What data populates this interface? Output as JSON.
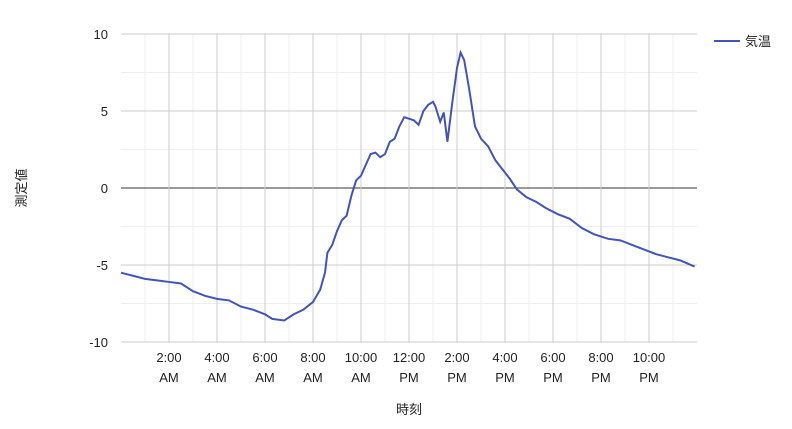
{
  "chart_data": {
    "type": "line",
    "x_label": "時刻",
    "y_label": "測定値",
    "x": [
      0,
      0.5,
      1,
      1.5,
      2,
      2.5,
      3,
      3.5,
      4,
      4.5,
      5,
      5.5,
      6,
      6.3,
      6.8,
      7.2,
      7.6,
      8,
      8.3,
      8.5,
      8.6,
      8.8,
      9,
      9.2,
      9.4,
      9.6,
      9.8,
      10,
      10.2,
      10.4,
      10.6,
      10.8,
      11,
      11.2,
      11.4,
      11.6,
      11.8,
      12,
      12.2,
      12.4,
      12.6,
      12.8,
      13,
      13.1,
      13.3,
      13.45,
      13.6,
      13.8,
      14,
      14.15,
      14.3,
      14.5,
      14.75,
      15,
      15.3,
      15.6,
      15.9,
      16.2,
      16.5,
      16.9,
      17.3,
      17.7,
      18.2,
      18.7,
      19.2,
      19.7,
      20.3,
      20.8,
      21.3,
      21.8,
      22.3,
      22.8,
      23.3,
      23.9
    ],
    "series": [
      {
        "name": "気温",
        "color": "#4355b4",
        "values": [
          -5.5,
          -5.7,
          -5.9,
          -6.0,
          -6.1,
          -6.2,
          -6.7,
          -7.0,
          -7.2,
          -7.3,
          -7.7,
          -7.9,
          -8.2,
          -8.5,
          -8.6,
          -8.2,
          -7.9,
          -7.4,
          -6.6,
          -5.5,
          -4.2,
          -3.7,
          -2.8,
          -2.1,
          -1.8,
          -0.5,
          0.5,
          0.8,
          1.5,
          2.2,
          2.3,
          2.0,
          2.2,
          3.0,
          3.2,
          4.0,
          4.6,
          4.5,
          4.4,
          4.1,
          5.0,
          5.4,
          5.6,
          5.3,
          4.3,
          4.9,
          3.0,
          5.5,
          7.8,
          8.8,
          8.3,
          6.5,
          4.0,
          3.2,
          2.7,
          1.8,
          1.2,
          0.6,
          -0.1,
          -0.6,
          -0.9,
          -1.3,
          -1.7,
          -2.0,
          -2.6,
          -3.0,
          -3.3,
          -3.4,
          -3.7,
          -4.0,
          -4.3,
          -4.5,
          -4.7,
          -5.1
        ]
      }
    ],
    "xlim": [
      0,
      24
    ],
    "xticks": [
      {
        "value": 2,
        "label": "2:00 AM"
      },
      {
        "value": 4,
        "label": "4:00 AM"
      },
      {
        "value": 6,
        "label": "6:00 AM"
      },
      {
        "value": 8,
        "label": "8:00 AM"
      },
      {
        "value": 10,
        "label": "10:00 AM"
      },
      {
        "value": 12,
        "label": "12:00 PM"
      },
      {
        "value": 14,
        "label": "2:00 PM"
      },
      {
        "value": 16,
        "label": "4:00 PM"
      },
      {
        "value": 18,
        "label": "6:00 PM"
      },
      {
        "value": 20,
        "label": "8:00 PM"
      },
      {
        "value": 22,
        "label": "10:00 PM"
      }
    ],
    "ylim": [
      -10,
      10
    ],
    "yticks": [
      -10,
      -5,
      0,
      5,
      10
    ],
    "grid": true,
    "legend": "right"
  }
}
